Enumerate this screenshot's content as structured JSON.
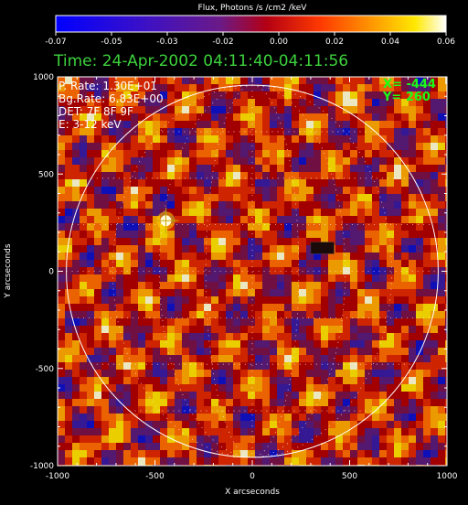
{
  "colorbar": {
    "title": "Flux, Photons /s /cm2 /keV",
    "ticks": [
      "-0.07",
      "-0.05",
      "-0.03",
      "-0.02",
      "0.00",
      "0.02",
      "0.04",
      "0.06"
    ]
  },
  "header": {
    "time": "Time: 24-Apr-2002 04:11:40-04:11:56"
  },
  "info": {
    "p_rate": "P. Rate:  1.30E+01",
    "bg_rate": "Bg.Rate:  6.83E+00",
    "det": "DET: 7F 8F 9F",
    "energy": "E: 3-12 keV"
  },
  "cursor": {
    "x_label": "X=  -444",
    "y_label": "Y=   260"
  },
  "chart_data": {
    "type": "heatmap",
    "title": "Time: 24-Apr-2002 04:11:40-04:11:56",
    "xlabel": "X arcseconds",
    "ylabel": "Y arcseconds",
    "xlim": [
      -1000,
      1000
    ],
    "ylim": [
      -1000,
      1000
    ],
    "x_ticks": [
      "-1000",
      "-500",
      "0",
      "500",
      "1000"
    ],
    "y_ticks": [
      "-1000",
      "-500",
      "0",
      "500",
      "1000"
    ],
    "colorbar_range": [
      -0.07,
      0.06
    ],
    "colormap": "hot-blue (rainbow style: blue, purple, red, orange, yellow, white)",
    "solar_disk_radius": 955,
    "grid": "dotted lat/lon grid on solar disk",
    "source": {
      "x": -444,
      "y": 260
    },
    "colors": {
      "background": "#000000",
      "title_green": "#3cd23c",
      "cursor_green": "#19ff19",
      "limb": "#ffffff"
    }
  }
}
